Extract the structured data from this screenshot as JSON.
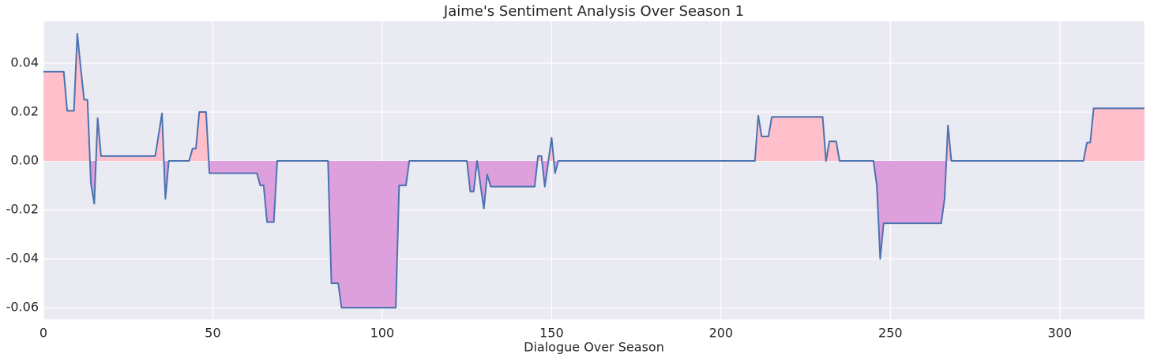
{
  "chart_data": {
    "type": "line",
    "title": "Jaime's Sentiment Analysis Over Season 1",
    "xlabel": "Dialogue Over Season",
    "x": [
      0,
      6,
      7,
      9,
      10,
      11,
      12,
      13,
      14,
      15,
      16,
      17,
      33,
      35,
      36,
      37,
      43,
      44,
      45,
      46,
      48,
      49,
      63,
      64,
      65,
      66,
      68,
      69,
      84,
      85,
      87,
      88,
      104,
      105,
      107,
      108,
      125,
      126,
      127,
      128,
      130,
      131,
      132,
      145,
      146,
      147,
      148,
      150,
      151,
      152,
      210,
      211,
      212,
      214,
      215,
      230,
      231,
      232,
      234,
      235,
      245,
      246,
      247,
      248,
      265,
      266,
      267,
      268,
      307,
      308,
      309,
      310,
      325
    ],
    "values": [
      0.0365,
      0.0365,
      0.0205,
      0.0205,
      0.052,
      0.038,
      0.025,
      0.025,
      -0.009,
      -0.0175,
      0.0175,
      0.002,
      0.002,
      0.0195,
      -0.0155,
      0,
      0,
      0.005,
      0.005,
      0.02,
      0.02,
      -0.005,
      -0.005,
      -0.01,
      -0.01,
      -0.025,
      -0.025,
      0,
      0,
      -0.05,
      -0.05,
      -0.06,
      -0.06,
      -0.01,
      -0.01,
      0,
      0,
      -0.0125,
      -0.0125,
      0,
      -0.0195,
      -0.0055,
      -0.0105,
      -0.0105,
      0.002,
      0.002,
      -0.0105,
      0.0095,
      -0.005,
      0,
      0,
      0.0185,
      0.01,
      0.01,
      0.018,
      0.018,
      0,
      0.008,
      0.008,
      0,
      0,
      -0.01,
      -0.04,
      -0.0255,
      -0.0255,
      -0.0155,
      0.0145,
      0,
      0,
      0.0075,
      0.0075,
      0.0215,
      0.0215
    ],
    "color": "#4c72b0",
    "positive_fill_color": "pink",
    "negative_fill_color": "plum",
    "xlim": [
      0,
      325
    ],
    "ylim": [
      -0.0648,
      0.0571
    ],
    "xticks": [
      0,
      50,
      100,
      150,
      200,
      250,
      300
    ],
    "yticks": [
      -0.06,
      -0.04,
      -0.02,
      {
        "value": 0,
        "label": "0.00"
      },
      0.02,
      0.04
    ],
    "grid": true
  }
}
